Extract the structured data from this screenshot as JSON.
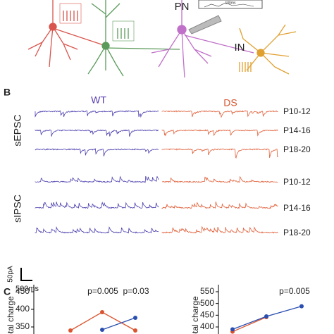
{
  "panel_a": {
    "pn": "PN",
    "scale": "100ms",
    "in": "IN"
  },
  "panel_b": {
    "label": "B",
    "wt": "WT",
    "ds": "DS",
    "sepsc": "sEPSC",
    "sipsc": "sIPSC",
    "ages": [
      "P10-12",
      "P14-16",
      "P18-20",
      "P10-12",
      "P14-16",
      "P18-20"
    ],
    "scale_y": "50pA",
    "scale_x": "500ms"
  },
  "panel_c": {
    "label": "C",
    "charts": [
      {
        "type": "line",
        "ylabel": "otal charge",
        "ylim": [
          330,
          470
        ],
        "yticks": [
          450,
          400,
          350
        ],
        "categories": [
          null,
          null,
          null
        ],
        "series": [
          {
            "color": "#d9542f",
            "values": [
              340,
              392,
              340
            ]
          },
          {
            "color": "#2a4fb0",
            "values": [
              null,
              342,
              376
            ]
          }
        ],
        "annotations": [
          "p=0.005",
          "p=0.03"
        ]
      },
      {
        "type": "line",
        "ylabel": "otal charge",
        "ylim": [
          370,
          580
        ],
        "yticks": [
          550,
          500,
          450,
          400
        ],
        "categories": [
          null,
          null,
          null
        ],
        "series": [
          {
            "color": "#d9542f",
            "values": [
              380,
              442,
              null
            ]
          },
          {
            "color": "#2a4fb0",
            "values": [
              390,
              445,
              488
            ]
          }
        ],
        "annotations": [
          "p=0.005"
        ]
      }
    ]
  }
}
